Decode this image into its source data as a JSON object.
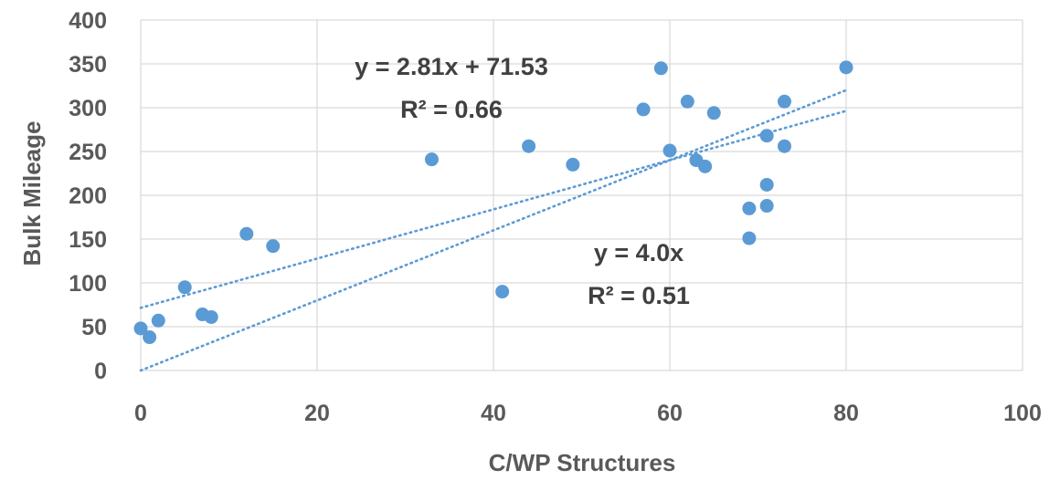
{
  "chart_data": {
    "type": "scatter",
    "title": "",
    "xlabel": "C/WP Structures",
    "ylabel": "Bulk Mileage",
    "xlim": [
      0,
      100
    ],
    "ylim": [
      0,
      400
    ],
    "xticks": [
      "0",
      "20",
      "40",
      "60",
      "80",
      "100"
    ],
    "yticks": [
      "0",
      "50",
      "100",
      "150",
      "200",
      "250",
      "300",
      "350",
      "400"
    ],
    "grid": true,
    "legend": "none",
    "colors": {
      "point": "#5b9bd5",
      "trendline": "#5b9bd5",
      "grid": "#d9d9d9",
      "text": "#595959",
      "annotation_text": "#404040"
    },
    "points": [
      {
        "x": 0,
        "y": 48
      },
      {
        "x": 1,
        "y": 38
      },
      {
        "x": 2,
        "y": 57
      },
      {
        "x": 5,
        "y": 95
      },
      {
        "x": 7,
        "y": 64
      },
      {
        "x": 8,
        "y": 61
      },
      {
        "x": 12,
        "y": 156
      },
      {
        "x": 15,
        "y": 142
      },
      {
        "x": 33,
        "y": 241
      },
      {
        "x": 41,
        "y": 90
      },
      {
        "x": 44,
        "y": 256
      },
      {
        "x": 49,
        "y": 235
      },
      {
        "x": 57,
        "y": 298
      },
      {
        "x": 59,
        "y": 345
      },
      {
        "x": 60,
        "y": 251
      },
      {
        "x": 62,
        "y": 307
      },
      {
        "x": 63,
        "y": 240
      },
      {
        "x": 64,
        "y": 233
      },
      {
        "x": 65,
        "y": 294
      },
      {
        "x": 69,
        "y": 185
      },
      {
        "x": 69,
        "y": 151
      },
      {
        "x": 71,
        "y": 268
      },
      {
        "x": 71,
        "y": 212
      },
      {
        "x": 71,
        "y": 188
      },
      {
        "x": 73,
        "y": 307
      },
      {
        "x": 73,
        "y": 256
      },
      {
        "x": 80,
        "y": 346
      }
    ],
    "trendlines": [
      {
        "slope": 2.81,
        "intercept": 71.53,
        "x_range": [
          0,
          80
        ]
      },
      {
        "slope": 4.0,
        "intercept": 0,
        "x_range": [
          0,
          80
        ]
      }
    ],
    "annotations": [
      {
        "equation": "y = 2.81x + 71.53",
        "r2": "R² = 0.66"
      },
      {
        "equation": "y = 4.0x",
        "r2": "R² = 0.51"
      }
    ]
  }
}
